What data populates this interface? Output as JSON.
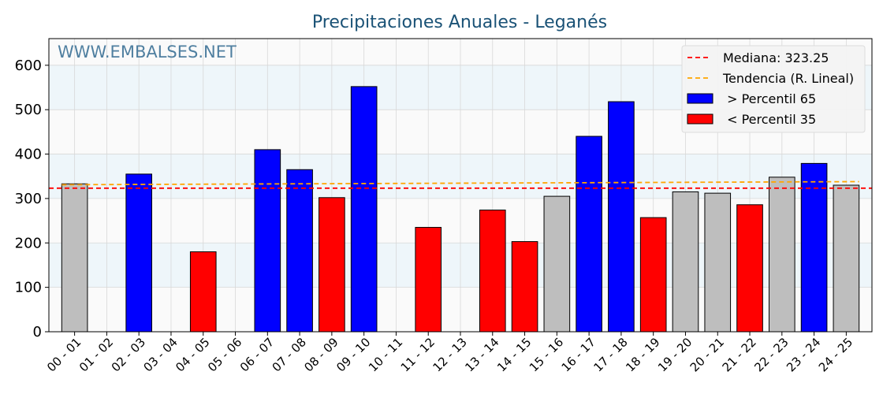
{
  "chart_data": {
    "type": "bar",
    "title": "Precipitaciones Anuales - Leganés",
    "watermark": "WWW.EMBALSES.NET",
    "xlabel": "",
    "ylabel": "",
    "ylim": [
      0,
      660
    ],
    "yticks": [
      0,
      100,
      200,
      300,
      400,
      500,
      600
    ],
    "grid": true,
    "legend_position": "top-right",
    "categories": [
      "00 - 01",
      "01 - 02",
      "02 - 03",
      "03 - 04",
      "04 - 05",
      "05 - 06",
      "06 - 07",
      "07 - 08",
      "08 - 09",
      "09 - 10",
      "10 - 11",
      "11 - 12",
      "12 - 13",
      "13 - 14",
      "14 - 15",
      "15 - 16",
      "16 - 17",
      "17 - 18",
      "18 - 19",
      "19 - 20",
      "20 - 21",
      "21 - 22",
      "22 - 23",
      "23 - 24",
      "24 - 25"
    ],
    "values": [
      333,
      null,
      355,
      null,
      180,
      null,
      410,
      365,
      302,
      552,
      null,
      235,
      null,
      274,
      203,
      305,
      440,
      518,
      257,
      315,
      312,
      286,
      348,
      379,
      330
    ],
    "bar_class": [
      "mid",
      null,
      "high",
      null,
      "low",
      null,
      "high",
      "high",
      "low",
      "high",
      null,
      "low",
      null,
      "low",
      "low",
      "mid",
      "high",
      "high",
      "low",
      "mid",
      "mid",
      "low",
      "mid",
      "high",
      "mid"
    ],
    "colors": {
      "high": "#0000ff",
      "low": "#ff0000",
      "mid": "#bebebe",
      "median_line": "#ff0000",
      "trend_line": "#ffa500",
      "band": "#eef6fa",
      "plot_bg": "#fafafa"
    },
    "median": 323.25,
    "trend": {
      "start": 331,
      "end": 338
    },
    "bands": [
      [
        100,
        200
      ],
      [
        300,
        400
      ],
      [
        500,
        600
      ]
    ],
    "legend": [
      {
        "label": "Mediana: 323.25",
        "kind": "median_line"
      },
      {
        "label": "Tendencia (R. Lineal)",
        "kind": "trend_line"
      },
      {
        "label": " > Percentil 65",
        "kind": "high"
      },
      {
        "label": " < Percentil 35",
        "kind": "low"
      }
    ]
  }
}
